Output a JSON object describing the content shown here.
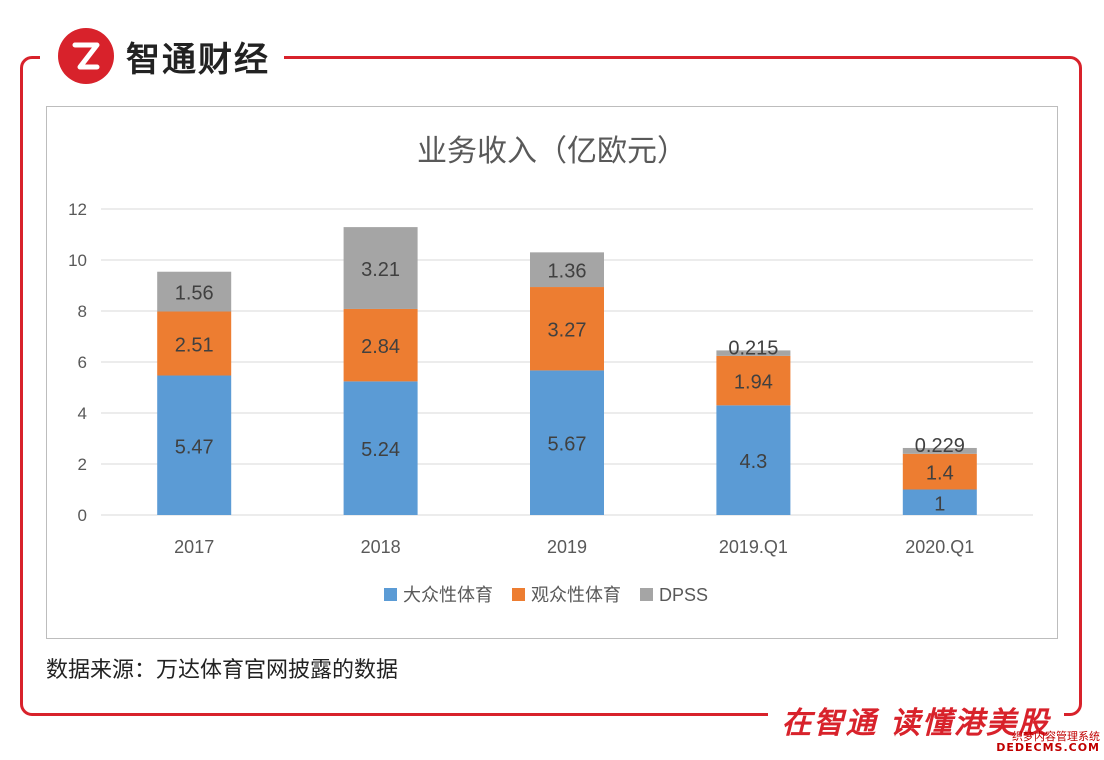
{
  "brand": {
    "name": "智通财经",
    "logo_letter": "Z"
  },
  "slogan": "在智通 读懂港美股",
  "source": "数据来源：万达体育官网披露的数据",
  "watermark": {
    "line1": "织梦内容管理系统",
    "line2": "DEDECMS.COM"
  },
  "colors": {
    "brand": "#d8222b",
    "mass": "#5b9bd5",
    "spectator": "#ed7d31",
    "dpss": "#a5a5a5"
  },
  "chart_data": {
    "type": "bar",
    "stacked": true,
    "title": "业务收入（亿欧元）",
    "categories": [
      "2017",
      "2018",
      "2019",
      "2019.Q1",
      "2020.Q1"
    ],
    "ylim": [
      0,
      12
    ],
    "yticks": [
      0,
      2,
      4,
      6,
      8,
      10,
      12
    ],
    "grid": true,
    "legend_position": "bottom",
    "series": [
      {
        "name": "大众性体育",
        "color": "#5b9bd5",
        "values": [
          5.47,
          5.24,
          5.67,
          4.3,
          1
        ],
        "labels": [
          "5.47",
          "5.24",
          "5.67",
          "4.3",
          "1"
        ]
      },
      {
        "name": "观众性体育",
        "color": "#ed7d31",
        "values": [
          2.51,
          2.84,
          3.27,
          1.94,
          1.4
        ],
        "labels": [
          "2.51",
          "2.84",
          "3.27",
          "1.94",
          "1.4"
        ]
      },
      {
        "name": "DPSS",
        "color": "#a5a5a5",
        "values": [
          1.56,
          3.21,
          1.36,
          0.215,
          0.229
        ],
        "labels": [
          "1.56",
          "3.21",
          "1.36",
          "0.215",
          "0.229"
        ]
      }
    ]
  }
}
